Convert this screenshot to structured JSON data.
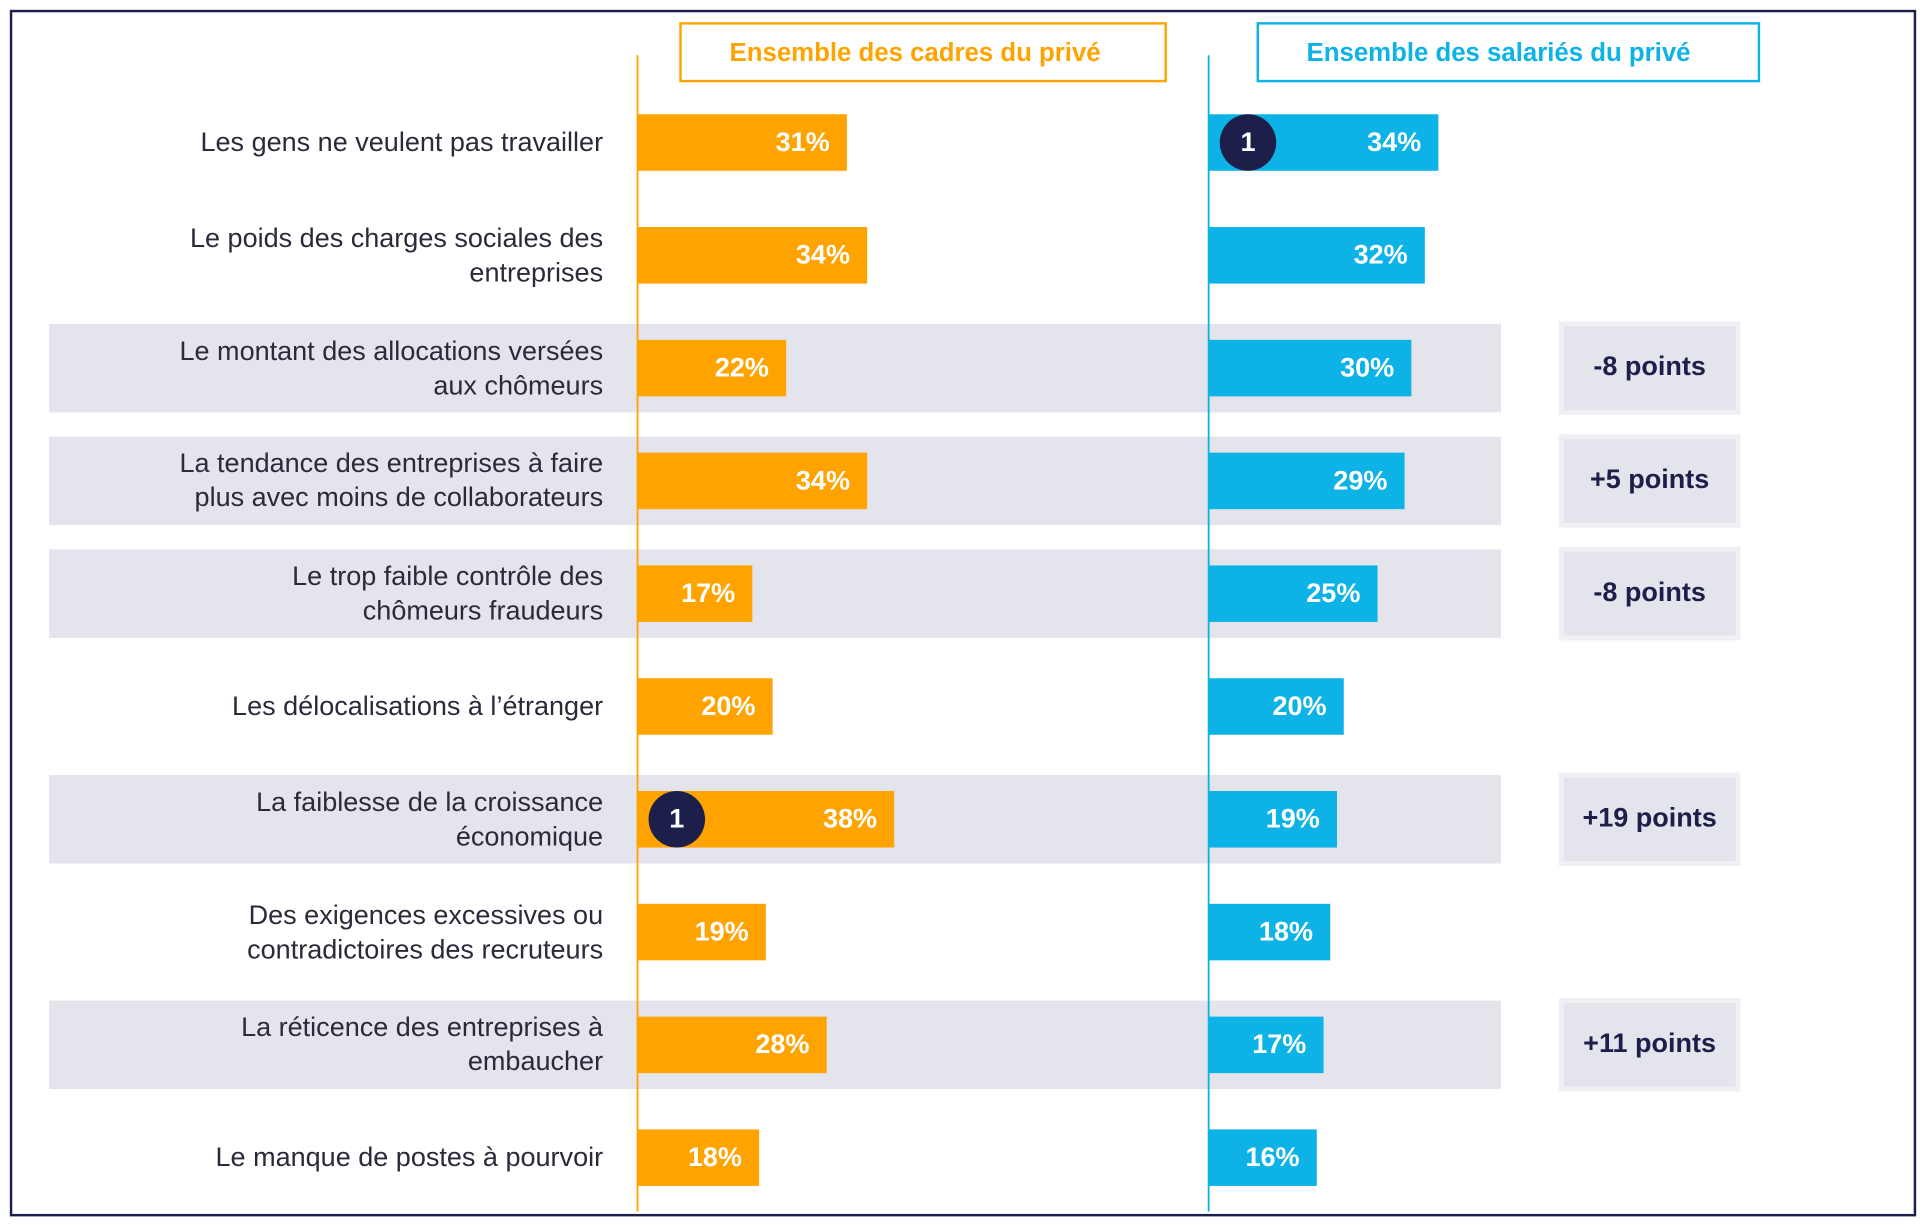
{
  "chart_data": {
    "type": "bar",
    "categories": [
      "Les gens ne veulent pas travailler",
      "Le poids des charges sociales des\nentreprises",
      "Le montant des allocations versées\naux chômeurs",
      "La tendance des entreprises à faire\nplus avec moins de collaborateurs",
      "Le trop faible contrôle des\nchômeurs fraudeurs",
      "Les délocalisations à l’étranger",
      "La faiblesse de la croissance\néconomique",
      "Des exigences excessives ou\ncontradictoires des recruteurs",
      "La réticence des entreprises à\nembaucher",
      "Le manque de postes à pourvoir"
    ],
    "series": [
      {
        "name": "Ensemble des cadres du privé",
        "color": "#ffa300",
        "values": [
          31,
          34,
          22,
          34,
          17,
          20,
          38,
          19,
          28,
          18
        ],
        "value_labels": [
          "31%",
          "34%",
          "22%",
          "34%",
          "17%",
          "20%",
          "38%",
          "19%",
          "28%",
          "18%"
        ],
        "rank_labels": [
          null,
          null,
          null,
          null,
          null,
          null,
          "1",
          null,
          null,
          null
        ]
      },
      {
        "name": "Ensemble des salariés du privé",
        "color": "#0db3e6",
        "values": [
          34,
          32,
          30,
          29,
          25,
          20,
          19,
          18,
          17,
          16
        ],
        "value_labels": [
          "34%",
          "32%",
          "30%",
          "29%",
          "25%",
          "20%",
          "19%",
          "18%",
          "17%",
          "16%"
        ],
        "rank_labels": [
          "1",
          null,
          null,
          null,
          null,
          null,
          null,
          null,
          null,
          null
        ]
      }
    ],
    "differences": [
      null,
      null,
      "-8 points",
      "+5 points",
      "-8 points",
      null,
      "+19 points",
      null,
      "+11 points",
      null
    ]
  }
}
